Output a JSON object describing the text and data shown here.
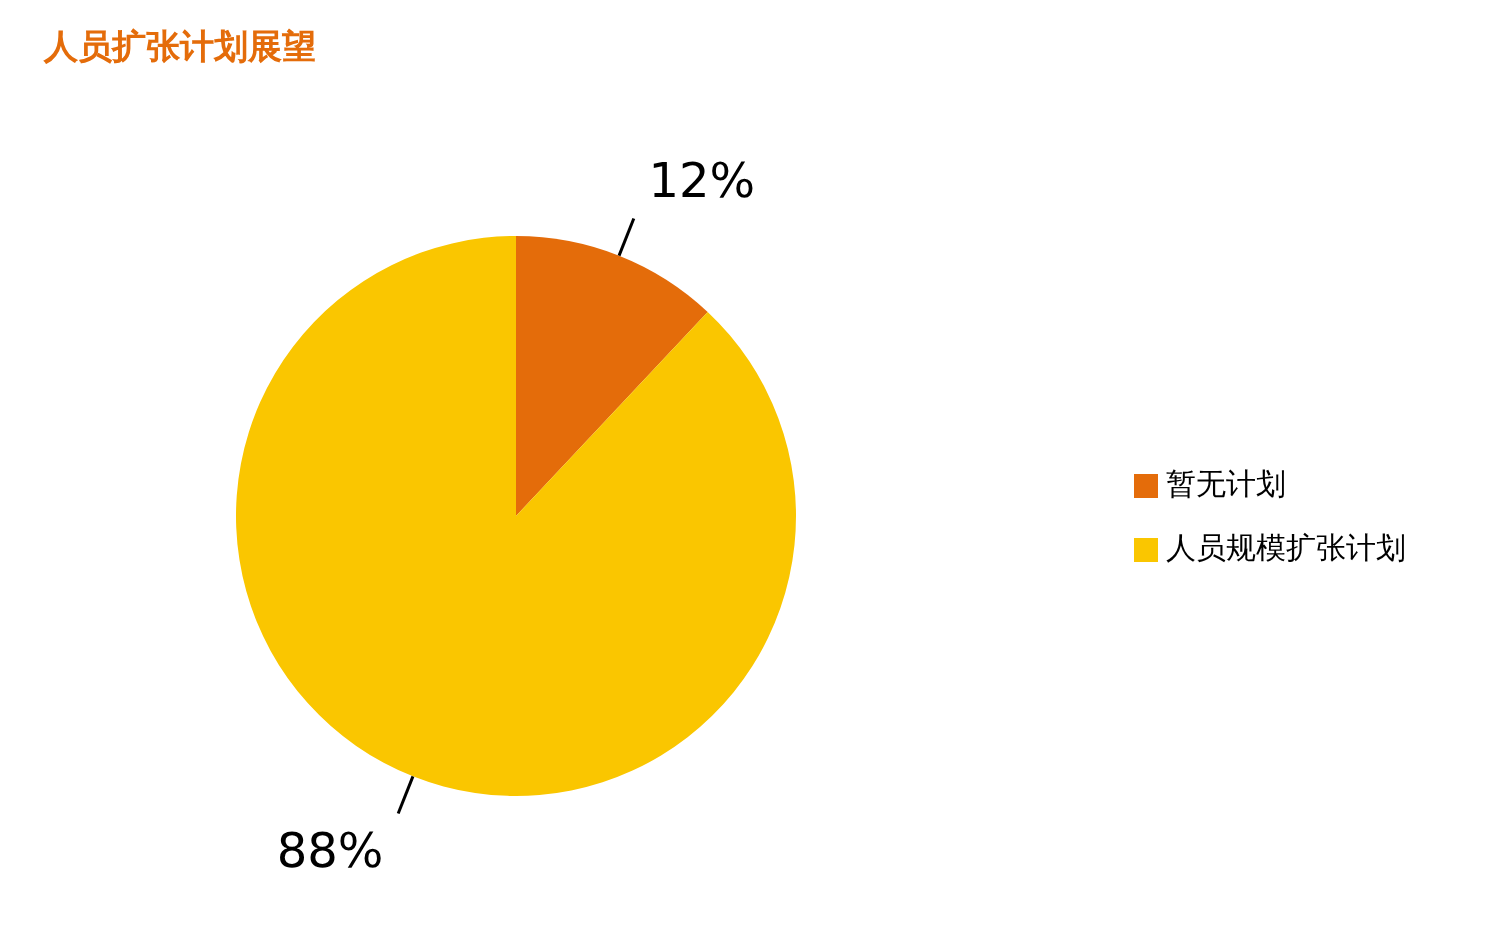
{
  "chart_data": {
    "type": "pie",
    "title": "人员扩张计划展望",
    "categories": [
      "暂无计划",
      "人员规模扩张计划"
    ],
    "values": [
      12,
      88
    ],
    "colors": [
      "#e46c0a",
      "#fac600"
    ],
    "value_labels": [
      "12%",
      "88%"
    ],
    "legend": "right"
  }
}
